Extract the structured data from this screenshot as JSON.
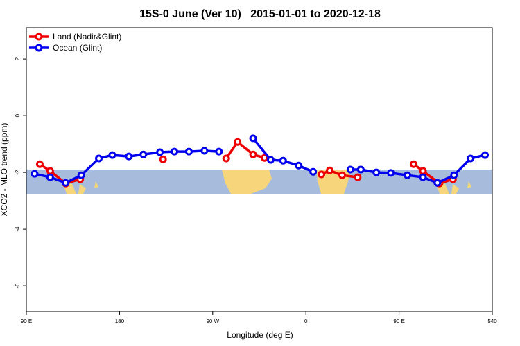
{
  "chart_data": {
    "type": "line",
    "title": "15S-0 June (Ver 10)   2015-01-01 to 2020-12-18",
    "x_label": "Longitude (deg E)",
    "y_label": "XCO2 - MLO trend (ppm)",
    "xlim": [
      90,
      540
    ],
    "ylim": [
      -6.9,
      3.1
    ],
    "xticks": [
      {
        "value": 90,
        "label": "90 E"
      },
      180,
      {
        "value": 270,
        "label": "90 W"
      },
      {
        "value": 360,
        "label": "0"
      },
      {
        "value": 450,
        "label": "90 E"
      },
      540
    ],
    "yticks": [
      2,
      0,
      -2,
      -4,
      -6
    ],
    "legend": "top-left",
    "series": [
      {
        "name": "Land (Nadir&Glint)",
        "color": "#ee0000",
        "x": [
          103,
          113,
          128,
          142,
          null,
          222,
          null,
          283,
          294,
          309,
          320,
          null,
          375,
          383,
          395,
          410,
          null,
          464,
          473,
          489,
          502
        ],
        "values": [
          -1.71,
          -1.95,
          -2.39,
          -2.24,
          null,
          -1.54,
          null,
          -1.51,
          -0.93,
          -1.37,
          -1.49,
          null,
          -2.07,
          -1.93,
          -2.1,
          -2.17,
          null,
          -1.71,
          -1.95,
          -2.39,
          -2.24
        ]
      },
      {
        "name": "Ocean (Glint)",
        "color": "#0000ee",
        "x": [
          98,
          113,
          128,
          143,
          160,
          173,
          189,
          203,
          219,
          233,
          247,
          262,
          276,
          null,
          309,
          326,
          338,
          353,
          367,
          null,
          403,
          413,
          428,
          442,
          458,
          473,
          487,
          503,
          519,
          533
        ],
        "values": [
          -2.05,
          -2.17,
          -2.37,
          -2.1,
          -1.51,
          -1.39,
          -1.44,
          -1.37,
          -1.29,
          -1.27,
          -1.27,
          -1.24,
          -1.27,
          null,
          -0.8,
          -1.56,
          -1.59,
          -1.76,
          -1.98,
          null,
          -1.9,
          -1.9,
          -2.0,
          -2.02,
          -2.1,
          -2.17,
          -2.37,
          -2.1,
          -1.51,
          -1.39
        ]
      }
    ]
  }
}
